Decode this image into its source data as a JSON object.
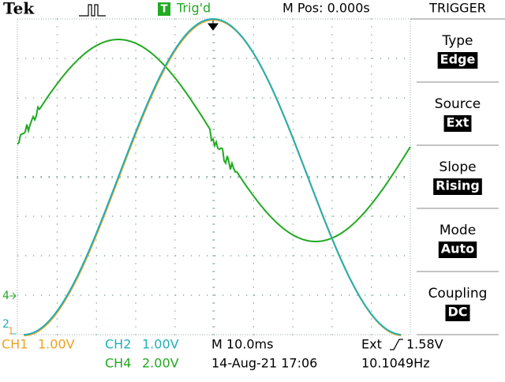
{
  "header": {
    "brand": "Tek",
    "trigger_badge": "T",
    "trigger_status": "Trig'd",
    "position": "M Pos: 0.000s"
  },
  "menu": {
    "title": "TRIGGER",
    "items": [
      {
        "label": "Type",
        "value": "Edge"
      },
      {
        "label": "Source",
        "value": "Ext"
      },
      {
        "label": "Slope",
        "value": "Rising"
      },
      {
        "label": "Mode",
        "value": "Auto"
      },
      {
        "label": "Coupling",
        "value": "DC"
      }
    ]
  },
  "markers": {
    "ch4": "4",
    "ch2": "2",
    "ch1": "1"
  },
  "footer": {
    "ch1": "CH1",
    "ch1_scale": "1.00V",
    "ch2": "CH2",
    "ch2_scale": "1.00V",
    "ch4": "CH4",
    "ch4_scale": "2.00V",
    "timebase": "M 10.0ms",
    "date": "14-Aug-21 17:06",
    "trigger": "Ext",
    "trigger_level": "1.58V",
    "frequency": "10.1049Hz"
  }
}
